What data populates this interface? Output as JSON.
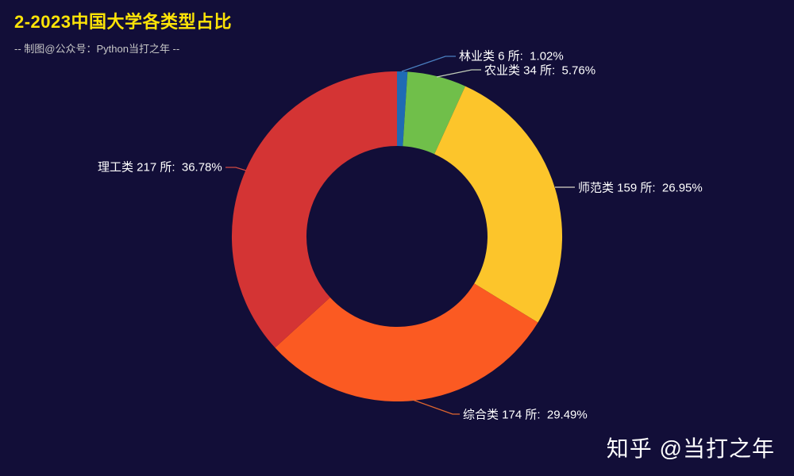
{
  "background_color": "#120e38",
  "header": {
    "title": "2-2023中国大学各类型占比",
    "title_color": "#fde407",
    "subtitle": "-- 制图@公众号：Python当打之年 --",
    "subtitle_color": "#c8c8c8"
  },
  "watermark": {
    "text": "知乎 @当打之年",
    "color": "#ffffff"
  },
  "chart_data": {
    "type": "pie",
    "variant": "donut",
    "title": "2-2023中国大学各类型占比",
    "subtitle": "-- 制图@公众号：Python当打之年 --",
    "unit": "所",
    "start_angle": "top",
    "direction": "clockwise",
    "inner_radius_ratio": 0.55,
    "label_color": "#ffffff",
    "slices": [
      {
        "name": "林业类",
        "count": 6,
        "pct": 1.02,
        "color": "#1f6bb4",
        "line_color": "#4a7fc0",
        "label": "林业类 6 所:  1.02%"
      },
      {
        "name": "农业类",
        "count": 34,
        "pct": 5.76,
        "color": "#70bf4a",
        "line_color": "#c2cdb9",
        "label": "农业类 34 所:  5.76%"
      },
      {
        "name": "师范类",
        "count": 159,
        "pct": 26.95,
        "color": "#fcc52b",
        "line_color": "#d8d4c6",
        "label": "师范类 159 所:  26.95%"
      },
      {
        "name": "综合类",
        "count": 174,
        "pct": 29.49,
        "color": "#fb5a22",
        "line_color": "#e0662e",
        "label": "综合类 174 所:  29.49%"
      },
      {
        "name": "理工类",
        "count": 217,
        "pct": 36.78,
        "color": "#d43434",
        "line_color": "#cf4a42",
        "label": "理工类 217 所:  36.78%"
      }
    ]
  }
}
